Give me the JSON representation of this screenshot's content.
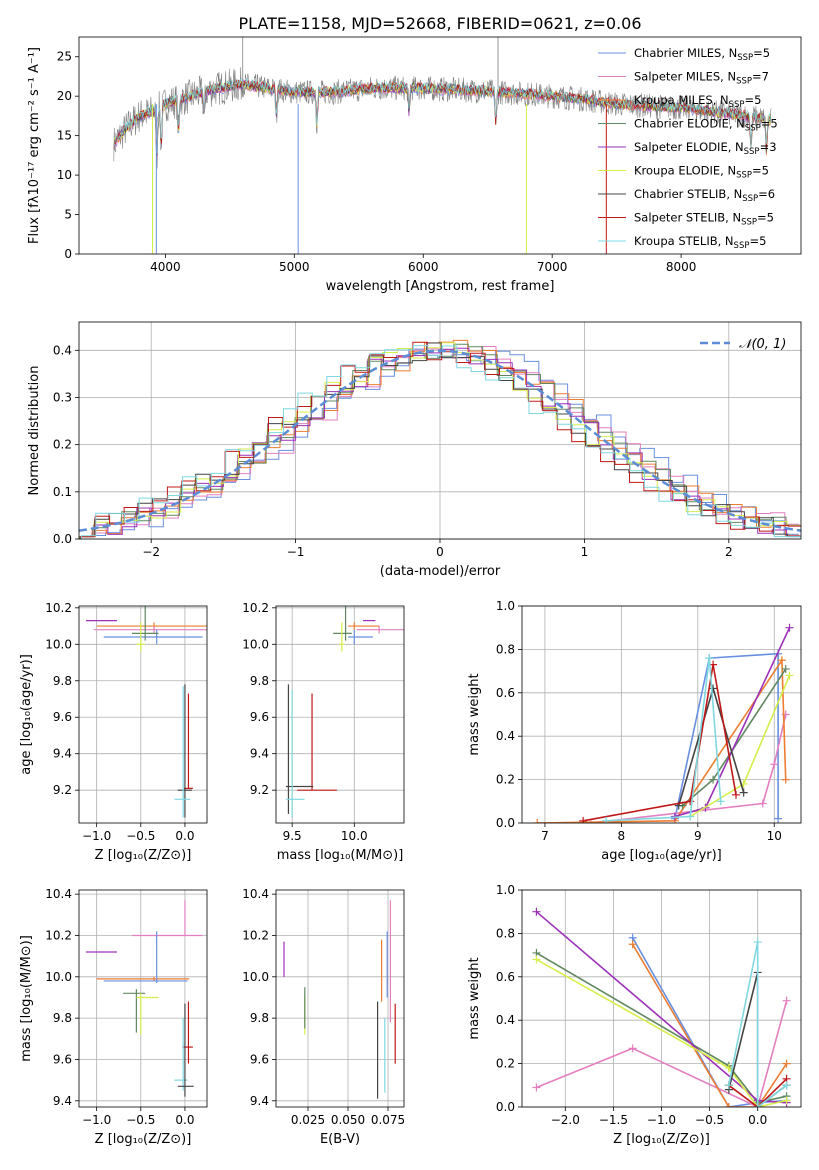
{
  "figure_title": "PLATE=1158, MJD=52668, FIBERID=0621, z=0.06",
  "colors": {
    "chabrier_miles": "#6890e0",
    "salpeter_miles": "#e37fc0",
    "kroupa_miles": "#ed7d31",
    "chabrier_elodie": "#608860",
    "salpeter_elodie": "#9c30b8",
    "kroupa_elodie": "#d6ed4a",
    "chabrier_stelib": "#444444",
    "salpeter_stelib": "#c01818",
    "kroupa_stelib": "#7fd8e0",
    "data": "#808080",
    "normal": "#5b8ed6"
  },
  "chart_data": [
    {
      "type": "line",
      "id": "spectrum",
      "title": "PLATE=1158, MJD=52668, FIBERID=0621, z=0.06",
      "xlabel": "wavelength [Angstrom, rest frame]",
      "ylabel": "Flux [fλ10⁻¹⁷ erg cm⁻² s⁻¹ A⁻¹]",
      "xlim": [
        3330,
        8930
      ],
      "ylim": [
        0,
        27.5
      ],
      "xticks": [
        4000,
        5000,
        6000,
        7000,
        8000
      ],
      "yticks": [
        0,
        5,
        10,
        15,
        20,
        25
      ],
      "grid": false,
      "legend_position": "right",
      "legend": [
        {
          "model": "Chabrier MILES",
          "n": "5"
        },
        {
          "model": "Salpeter MILES",
          "n": "7"
        },
        {
          "model": "Kroupa MILES",
          "n": "5"
        },
        {
          "model": "Chabrier ELODIE",
          "n": "5"
        },
        {
          "model": "Salpeter ELODIE",
          "n": "3"
        },
        {
          "model": "Kroupa ELODIE",
          "n": "5"
        },
        {
          "model": "Chabrier STELIB",
          "n": "6"
        },
        {
          "model": "Salpeter STELIB",
          "n": "5"
        },
        {
          "model": "Kroupa STELIB",
          "n": "5"
        }
      ],
      "continuum": [
        [
          3600,
          14
        ],
        [
          3700,
          16
        ],
        [
          3800,
          17.5
        ],
        [
          3900,
          18
        ],
        [
          4000,
          19
        ],
        [
          4200,
          20
        ],
        [
          4400,
          21
        ],
        [
          4600,
          21.5
        ],
        [
          4800,
          21
        ],
        [
          5000,
          20.5
        ],
        [
          5300,
          20.5
        ],
        [
          5600,
          21
        ],
        [
          6000,
          21
        ],
        [
          6400,
          20.7
        ],
        [
          6800,
          20.3
        ],
        [
          7200,
          19.7
        ],
        [
          7500,
          19
        ],
        [
          8000,
          18.5
        ],
        [
          8500,
          17.5
        ],
        [
          8700,
          17
        ]
      ],
      "data_features": [
        [
          3934,
          -6
        ],
        [
          3968,
          -5
        ],
        [
          4101,
          -4
        ],
        [
          4300,
          -3
        ],
        [
          4861,
          -3
        ],
        [
          5175,
          -4
        ],
        [
          5890,
          -3
        ],
        [
          6563,
          -4
        ],
        [
          8542,
          -4
        ],
        [
          8662,
          -4
        ]
      ],
      "dropouts": [
        [
          3900,
          0
        ],
        [
          3930,
          0
        ],
        [
          5030,
          0
        ],
        [
          6800,
          0
        ],
        [
          7420,
          0
        ]
      ],
      "spike": [
        [
          4600,
          27.5
        ],
        [
          6580,
          27.5
        ]
      ]
    },
    {
      "type": "histogram",
      "id": "residuals",
      "xlabel": "(data-model)/error",
      "ylabel": "Normed distribution",
      "xlim": [
        -2.5,
        2.5
      ],
      "ylim": [
        0,
        0.46
      ],
      "xticks": [
        -2,
        -1,
        0,
        1,
        2
      ],
      "yticks": [
        0.0,
        0.1,
        0.2,
        0.3,
        0.4
      ],
      "grid": true,
      "bin_width": 0.1,
      "legend_position": "top-right",
      "reference_label": "𝒩(0, 1)",
      "reference_curve": "normal(0,1)"
    },
    {
      "type": "scatter",
      "id": "age-vs-Z",
      "xlabel": "Z [log₁₀(Z/Z⊙)]",
      "ylabel": "age  [log₁₀(age/yr)]",
      "xlim": [
        -1.2,
        0.25
      ],
      "ylim": [
        9.02,
        10.21
      ],
      "xticks": [
        -1.0,
        -0.5,
        0.0
      ],
      "yticks": [
        9.2,
        9.4,
        9.6,
        9.8,
        10.0,
        10.2
      ],
      "grid": true,
      "points": [
        {
          "model": "salpeter_elodie",
          "x": -0.94,
          "y": 10.13,
          "xerr": [
            0.18,
            0.17
          ],
          "yerr": [
            0.0,
            0.0
          ]
        },
        {
          "model": "kroupa_miles",
          "x": -0.35,
          "y": 10.1,
          "xerr": [
            0.65,
            0.6
          ],
          "yerr": [
            0.02,
            0.02
          ]
        },
        {
          "model": "salpeter_miles",
          "x": -0.35,
          "y": 10.08,
          "xerr": [
            0.68,
            0.6
          ],
          "yerr": [
            0.02,
            0.02
          ]
        },
        {
          "model": "chabrier_miles",
          "x": -0.32,
          "y": 10.04,
          "xerr": [
            0.6,
            0.52
          ],
          "yerr": [
            0.04,
            0.04
          ]
        },
        {
          "model": "chabrier_elodie",
          "x": -0.45,
          "y": 10.06,
          "xerr": [
            0.15,
            0.15
          ],
          "yerr": [
            0.04,
            0.15
          ]
        },
        {
          "model": "kroupa_elodie",
          "x": -0.5,
          "y": 10.0,
          "xerr": [
            0.05,
            0.05
          ],
          "yerr": [
            0.04,
            0.12
          ]
        },
        {
          "model": "salpeter_stelib",
          "x": 0.04,
          "y": 9.21,
          "xerr": [
            0.05,
            0.05
          ],
          "yerr": [
            0.0,
            0.52
          ]
        },
        {
          "model": "chabrier_stelib",
          "x": 0.0,
          "y": 9.2,
          "xerr": [
            0.08,
            0.08
          ],
          "yerr": [
            0.15,
            0.58
          ]
        },
        {
          "model": "kroupa_stelib",
          "x": -0.02,
          "y": 9.15,
          "xerr": [
            0.1,
            0.08
          ],
          "yerr": [
            0.1,
            0.62
          ]
        }
      ]
    },
    {
      "type": "scatter",
      "id": "age-vs-mass",
      "xlabel": "mass [log₁₀(M/M⊙)]",
      "ylabel": "",
      "xlim": [
        9.37,
        10.4
      ],
      "ylim": [
        9.02,
        10.21
      ],
      "xticks": [
        9.5,
        10.0
      ],
      "yticks": [
        9.2,
        9.4,
        9.6,
        9.8,
        10.0,
        10.2
      ],
      "grid": true,
      "points": [
        {
          "model": "salpeter_miles",
          "x": 10.2,
          "y": 10.08,
          "xerr": [
            0.18,
            0.2
          ],
          "yerr": [
            0.02,
            0.02
          ]
        },
        {
          "model": "kroupa_miles",
          "x": 10.0,
          "y": 10.1,
          "xerr": [
            0.05,
            0.2
          ],
          "yerr": [
            0.02,
            0.02
          ]
        },
        {
          "model": "chabrier_miles",
          "x": 10.0,
          "y": 10.04,
          "xerr": [
            0.05,
            0.15
          ],
          "yerr": [
            0.04,
            0.04
          ]
        },
        {
          "model": "salpeter_elodie",
          "x": 10.12,
          "y": 10.13,
          "xerr": [
            0.05,
            0.05
          ],
          "yerr": [
            0.0,
            0.0
          ]
        },
        {
          "model": "chabrier_elodie",
          "x": 9.93,
          "y": 10.06,
          "xerr": [
            0.1,
            0.05
          ],
          "yerr": [
            0.04,
            0.15
          ]
        },
        {
          "model": "kroupa_elodie",
          "x": 9.9,
          "y": 10.0,
          "xerr": [
            0.02,
            0.02
          ],
          "yerr": [
            0.04,
            0.12
          ]
        },
        {
          "model": "salpeter_stelib",
          "x": 9.66,
          "y": 9.2,
          "xerr": [
            0.12,
            0.2
          ],
          "yerr": [
            0.0,
            0.53
          ]
        },
        {
          "model": "chabrier_stelib",
          "x": 9.47,
          "y": 9.22,
          "xerr": [
            0.02,
            0.2
          ],
          "yerr": [
            0.15,
            0.56
          ]
        },
        {
          "model": "kroupa_stelib",
          "x": 9.5,
          "y": 9.15,
          "xerr": [
            0.05,
            0.1
          ],
          "yerr": [
            0.1,
            0.6
          ]
        }
      ]
    },
    {
      "type": "line",
      "id": "weight-vs-age",
      "xlabel": "age  [log₁₀(age/yr)]",
      "ylabel": "mass weight",
      "xlim": [
        6.7,
        10.35
      ],
      "ylim": [
        0,
        1
      ],
      "xticks": [
        7,
        8,
        9,
        10
      ],
      "yticks": [
        0.0,
        0.2,
        0.4,
        0.6,
        0.8,
        1.0
      ],
      "grid": true,
      "series": [
        {
          "model": "chabrier_miles",
          "x": [
            8.7,
            9.15,
            10.05,
            10.05
          ],
          "y": [
            0.02,
            0.76,
            0.78,
            0.02
          ]
        },
        {
          "model": "salpeter_miles",
          "x": [
            7.6,
            9.85,
            10.0,
            10.15
          ],
          "y": [
            0.0,
            0.09,
            0.27,
            0.5
          ]
        },
        {
          "model": "kroupa_miles",
          "x": [
            6.9,
            8.7,
            10.1,
            10.15
          ],
          "y": [
            0.0,
            0.01,
            0.75,
            0.2
          ]
        },
        {
          "model": "chabrier_elodie",
          "x": [
            8.8,
            9.2,
            10.15
          ],
          "y": [
            0.08,
            0.2,
            0.71
          ]
        },
        {
          "model": "salpeter_elodie",
          "x": [
            8.7,
            9.1,
            10.2
          ],
          "y": [
            0.03,
            0.07,
            0.9
          ]
        },
        {
          "model": "kroupa_elodie",
          "x": [
            8.9,
            9.6,
            10.2
          ],
          "y": [
            0.03,
            0.18,
            0.68
          ]
        },
        {
          "model": "chabrier_stelib",
          "x": [
            8.75,
            9.2,
            9.6
          ],
          "y": [
            0.08,
            0.62,
            0.14
          ]
        },
        {
          "model": "salpeter_stelib",
          "x": [
            7.5,
            8.9,
            9.2,
            9.5
          ],
          "y": [
            0.01,
            0.1,
            0.73,
            0.13
          ]
        },
        {
          "model": "kroupa_stelib",
          "x": [
            7.8,
            8.9,
            9.15,
            9.3
          ],
          "y": [
            0.01,
            0.03,
            0.76,
            0.1
          ]
        }
      ]
    },
    {
      "type": "scatter",
      "id": "mass-vs-Z",
      "xlabel": "Z [log₁₀(Z/Z⊙)]",
      "ylabel": "mass [log₁₀(M/M⊙)]",
      "xlim": [
        -1.2,
        0.25
      ],
      "ylim": [
        9.37,
        10.42
      ],
      "xticks": [
        -1.0,
        -0.5,
        0.0
      ],
      "yticks": [
        9.4,
        9.6,
        9.8,
        10.0,
        10.2,
        10.4
      ],
      "grid": true,
      "points": [
        {
          "model": "salpeter_miles",
          "x": 0.0,
          "y": 10.2,
          "xerr": [
            0.6,
            0.2
          ],
          "yerr": [
            0.0,
            0.17
          ]
        },
        {
          "model": "salpeter_elodie",
          "x": -0.94,
          "y": 10.12,
          "xerr": [
            0.18,
            0.17
          ],
          "yerr": [
            0.0,
            0.0
          ]
        },
        {
          "model": "kroupa_miles",
          "x": -0.35,
          "y": 9.99,
          "xerr": [
            0.65,
            0.4
          ],
          "yerr": [
            0.01,
            0.01
          ]
        },
        {
          "model": "chabrier_miles",
          "x": -0.32,
          "y": 9.98,
          "xerr": [
            0.6,
            0.35
          ],
          "yerr": [
            0.01,
            0.24
          ]
        },
        {
          "model": "chabrier_elodie",
          "x": -0.55,
          "y": 9.92,
          "xerr": [
            0.15,
            0.1
          ],
          "yerr": [
            0.19,
            0.02
          ]
        },
        {
          "model": "kroupa_elodie",
          "x": -0.5,
          "y": 9.9,
          "xerr": [
            0.05,
            0.2
          ],
          "yerr": [
            0.18,
            0.02
          ]
        },
        {
          "model": "salpeter_stelib",
          "x": 0.04,
          "y": 9.66,
          "xerr": [
            0.07,
            0.05
          ],
          "yerr": [
            0.08,
            0.22
          ]
        },
        {
          "model": "kroupa_stelib",
          "x": -0.02,
          "y": 9.5,
          "xerr": [
            0.1,
            0.05
          ],
          "yerr": [
            0.05,
            0.3
          ]
        },
        {
          "model": "chabrier_stelib",
          "x": 0.0,
          "y": 9.47,
          "xerr": [
            0.08,
            0.1
          ],
          "yerr": [
            0.05,
            0.4
          ]
        }
      ]
    },
    {
      "type": "scatter",
      "id": "mass-vs-EBV",
      "xlabel": "E(B-V)",
      "ylabel": "",
      "xlim": [
        0.005,
        0.085
      ],
      "ylim": [
        9.37,
        10.42
      ],
      "xticks": [
        0.025,
        0.05,
        0.075
      ],
      "yticks": [
        9.4,
        9.6,
        9.8,
        10.0,
        10.2,
        10.4
      ],
      "grid": true,
      "points": [
        {
          "model": "salpeter_elodie",
          "x": 0.01,
          "ylo": 10.0,
          "yhi": 10.17
        },
        {
          "model": "kroupa_elodie",
          "x": 0.023,
          "ylo": 9.72,
          "yhi": 9.9
        },
        {
          "model": "chabrier_elodie",
          "x": 0.023,
          "ylo": 9.75,
          "yhi": 9.95
        },
        {
          "model": "chabrier_stelib",
          "x": 0.0685,
          "ylo": 9.41,
          "yhi": 9.88
        },
        {
          "model": "kroupa_miles",
          "x": 0.071,
          "ylo": 9.88,
          "yhi": 10.18
        },
        {
          "model": "kroupa_stelib",
          "x": 0.073,
          "ylo": 9.44,
          "yhi": 9.8
        },
        {
          "model": "salpeter_miles",
          "x": 0.0765,
          "ylo": 9.78,
          "yhi": 10.37
        },
        {
          "model": "chabrier_miles",
          "x": 0.0745,
          "ylo": 9.9,
          "yhi": 10.22
        },
        {
          "model": "salpeter_stelib",
          "x": 0.0795,
          "ylo": 9.58,
          "yhi": 9.87
        }
      ]
    },
    {
      "type": "line",
      "id": "weight-vs-Z",
      "xlabel": "Z [log₁₀(Z/Z⊙)]",
      "ylabel": "mass weight",
      "xlim": [
        -2.45,
        0.45
      ],
      "ylim": [
        0,
        1
      ],
      "xticks": [
        -2.0,
        -1.5,
        -1.0,
        -0.5,
        0.0
      ],
      "yticks": [
        0.0,
        0.2,
        0.4,
        0.6,
        0.8,
        1.0
      ],
      "grid": true,
      "series": [
        {
          "model": "chabrier_miles",
          "x": [
            -1.3,
            -0.3,
            0.0,
            0.3
          ],
          "y": [
            0.78,
            0.0,
            0.02,
            0.03
          ]
        },
        {
          "model": "salpeter_miles",
          "x": [
            -2.3,
            -1.3,
            0.0,
            0.3
          ],
          "y": [
            0.09,
            0.27,
            0.0,
            0.49
          ]
        },
        {
          "model": "kroupa_miles",
          "x": [
            -1.3,
            -0.3,
            0.0,
            0.3
          ],
          "y": [
            0.75,
            0.0,
            0.0,
            0.2
          ]
        },
        {
          "model": "chabrier_elodie",
          "x": [
            -2.3,
            -0.3,
            0.0,
            0.3
          ],
          "y": [
            0.71,
            0.19,
            0.02,
            0.05
          ]
        },
        {
          "model": "salpeter_elodie",
          "x": [
            -2.3,
            0.0,
            0.3
          ],
          "y": [
            0.9,
            0.03,
            0.02
          ]
        },
        {
          "model": "kroupa_elodie",
          "x": [
            -2.3,
            -0.3,
            0.0,
            0.3
          ],
          "y": [
            0.68,
            0.18,
            0.0,
            0.03
          ]
        },
        {
          "model": "chabrier_stelib",
          "x": [
            -0.3,
            0.0,
            0.0,
            0.3
          ],
          "y": [
            0.08,
            0.62,
            0.0,
            0.1
          ]
        },
        {
          "model": "salpeter_stelib",
          "x": [
            -0.3,
            0.0,
            0.3
          ],
          "y": [
            0.1,
            0.0,
            0.13
          ]
        },
        {
          "model": "kroupa_stelib",
          "x": [
            -0.3,
            0.0,
            0.0,
            0.3
          ],
          "y": [
            0.1,
            0.76,
            0.0,
            0.1
          ]
        }
      ]
    }
  ]
}
